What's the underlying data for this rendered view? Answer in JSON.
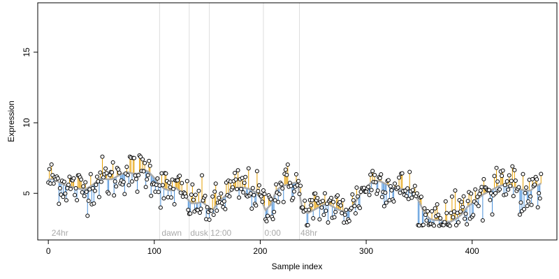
{
  "chart_data": {
    "type": "scatter",
    "title": "",
    "xlabel": "Sample index",
    "ylabel": "Expression",
    "xlim": [
      -10,
      480
    ],
    "ylim": [
      1.7,
      18.5
    ],
    "xticks": [
      0,
      100,
      200,
      300,
      400
    ],
    "yticks": [
      5,
      10,
      15
    ],
    "grid": false,
    "colors": {
      "above": "#e69f00",
      "below": "#4a90d9",
      "trend": "#aaaaaa",
      "boundary": "#dddddd",
      "points": "#000000"
    },
    "phase_boundaries": [
      105,
      133,
      152,
      203,
      237
    ],
    "phase_labels": [
      {
        "x": 3,
        "text": "24hr"
      },
      {
        "x": 107,
        "text": "dawn"
      },
      {
        "x": 134,
        "text": "dusk"
      },
      {
        "x": 153,
        "text": "12:00"
      },
      {
        "x": 204,
        "text": "0:00"
      },
      {
        "x": 238,
        "text": "48hr"
      }
    ],
    "anchor_values": [
      [
        0,
        6.0
      ],
      [
        5,
        6.0
      ],
      [
        10,
        5.8
      ],
      [
        15,
        5.6
      ],
      [
        20,
        5.5
      ],
      [
        25,
        5.4
      ],
      [
        30,
        5.3
      ],
      [
        35,
        5.3
      ],
      [
        40,
        5.5
      ],
      [
        45,
        5.8
      ],
      [
        50,
        6.1
      ],
      [
        55,
        6.0
      ],
      [
        60,
        6.0
      ],
      [
        65,
        6.2
      ],
      [
        70,
        6.4
      ],
      [
        75,
        6.5
      ],
      [
        80,
        6.4
      ],
      [
        85,
        6.4
      ],
      [
        90,
        6.7
      ],
      [
        95,
        6.5
      ],
      [
        100,
        6.1
      ],
      [
        105,
        5.6
      ],
      [
        110,
        5.3
      ],
      [
        115,
        5.2
      ],
      [
        120,
        5.4
      ],
      [
        125,
        5.1
      ],
      [
        130,
        4.7
      ],
      [
        135,
        4.3
      ],
      [
        140,
        4.3
      ],
      [
        145,
        4.4
      ],
      [
        150,
        4.1
      ],
      [
        155,
        3.8
      ],
      [
        160,
        4.3
      ],
      [
        165,
        4.7
      ],
      [
        170,
        5.0
      ],
      [
        175,
        5.3
      ],
      [
        180,
        5.4
      ],
      [
        185,
        5.4
      ],
      [
        190,
        5.3
      ],
      [
        195,
        5.1
      ],
      [
        200,
        4.7
      ],
      [
        205,
        3.8
      ],
      [
        210,
        4.2
      ],
      [
        215,
        5.2
      ],
      [
        220,
        5.5
      ],
      [
        225,
        5.6
      ],
      [
        230,
        5.7
      ],
      [
        235,
        5.8
      ],
      [
        240,
        3.8
      ],
      [
        245,
        3.6
      ],
      [
        250,
        3.8
      ],
      [
        255,
        4.0
      ],
      [
        260,
        4.2
      ],
      [
        265,
        4.2
      ],
      [
        270,
        4.0
      ],
      [
        275,
        3.8
      ],
      [
        280,
        3.7
      ],
      [
        285,
        3.9
      ],
      [
        290,
        4.4
      ],
      [
        295,
        5.0
      ],
      [
        300,
        5.4
      ],
      [
        305,
        5.8
      ],
      [
        310,
        5.9
      ],
      [
        315,
        5.8
      ],
      [
        320,
        5.6
      ],
      [
        325,
        5.4
      ],
      [
        330,
        5.3
      ],
      [
        335,
        5.3
      ],
      [
        340,
        5.3
      ],
      [
        345,
        5.0
      ],
      [
        350,
        4.4
      ],
      [
        355,
        3.6
      ],
      [
        360,
        3.2
      ],
      [
        365,
        3.1
      ],
      [
        370,
        3.1
      ],
      [
        375,
        3.0
      ],
      [
        380,
        3.0
      ],
      [
        385,
        3.2
      ],
      [
        390,
        3.5
      ],
      [
        395,
        4.0
      ],
      [
        400,
        4.3
      ],
      [
        405,
        4.6
      ],
      [
        410,
        4.9
      ],
      [
        415,
        5.1
      ],
      [
        420,
        5.3
      ],
      [
        425,
        5.5
      ],
      [
        430,
        5.6
      ],
      [
        435,
        5.5
      ],
      [
        440,
        5.4
      ],
      [
        445,
        5.3
      ],
      [
        450,
        5.2
      ],
      [
        455,
        5.2
      ],
      [
        460,
        5.5
      ],
      [
        465,
        5.7
      ]
    ],
    "n_points": 466
  }
}
